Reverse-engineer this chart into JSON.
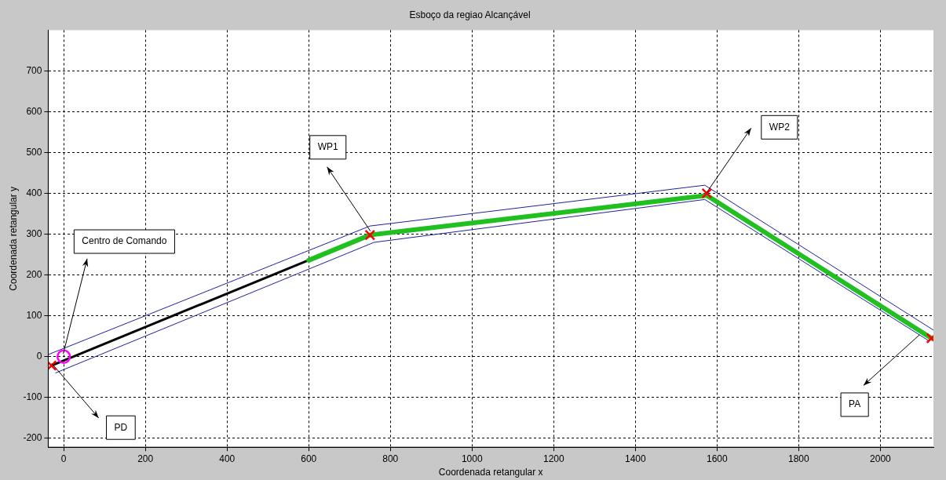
{
  "chart_data": {
    "type": "line",
    "title": "Esboço da regiao Alcançável",
    "xlabel": "Coordenada retangular x",
    "ylabel": "Coordenada retangular y",
    "xlim": [
      -38,
      2130
    ],
    "ylim": [
      -222,
      800
    ],
    "xticks": [
      0,
      200,
      400,
      600,
      800,
      1000,
      1200,
      1400,
      1600,
      1800,
      2000
    ],
    "yticks": [
      -200,
      -100,
      0,
      100,
      200,
      300,
      400,
      500,
      600,
      700
    ],
    "grid": true,
    "series": [
      {
        "color": "#2020a0",
        "x": [
          -38,
          750,
          1570,
          2130
        ],
        "values": [
          5,
          320,
          420,
          65
        ]
      },
      {
        "color": "#2020a0",
        "x": [
          -20,
          760,
          1570,
          2120
        ],
        "values": [
          -40,
          280,
          385,
          38
        ]
      },
      {
        "color": "#20c020",
        "x": [
          600,
          750,
          1575,
          2125
        ],
        "values": [
          236,
          298,
          395,
          45
        ]
      },
      {
        "color": "#000000",
        "x": [
          -30,
          750
        ],
        "values": [
          -22,
          298
        ]
      },
      {
        "type": "scatter",
        "color": "#ff0000",
        "marker": "cross",
        "x": [
          -30,
          750,
          1575,
          2125
        ],
        "values": [
          -22,
          298,
          400,
          45
        ]
      },
      {
        "type": "scatter",
        "color": "#ff00ff",
        "marker": "circle",
        "x": [
          0
        ],
        "values": [
          0
        ]
      }
    ],
    "annotations": [
      "Centro de Comando",
      "PD",
      "WP1",
      "WP2",
      "PA"
    ]
  }
}
